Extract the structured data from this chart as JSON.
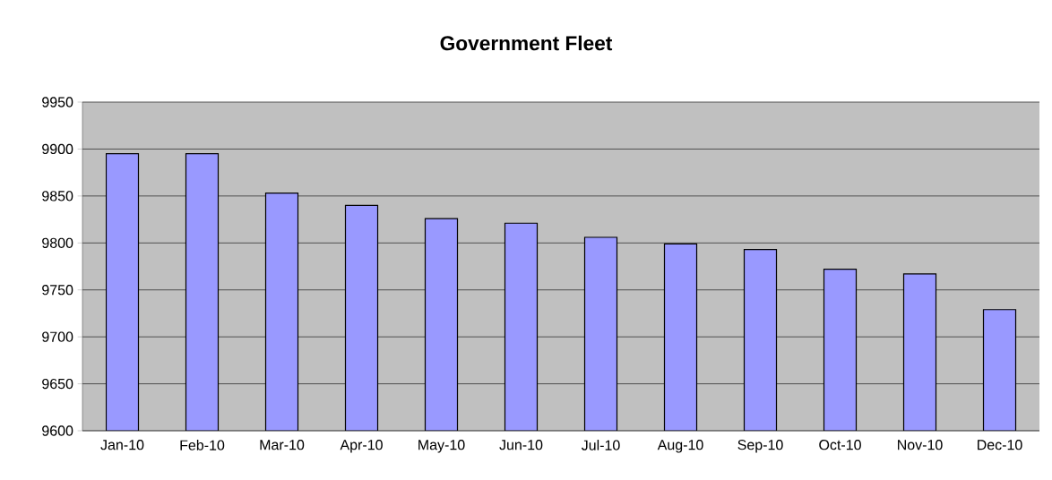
{
  "chart_data": {
    "type": "bar",
    "title": "Government Fleet",
    "categories": [
      "Jan-10",
      "Feb-10",
      "Mar-10",
      "Apr-10",
      "May-10",
      "Jun-10",
      "Jul-10",
      "Aug-10",
      "Sep-10",
      "Oct-10",
      "Nov-10",
      "Dec-10"
    ],
    "values": [
      9895,
      9895,
      9853,
      9840,
      9826,
      9821,
      9806,
      9799,
      9793,
      9772,
      9767,
      9729
    ],
    "color": "#9999ff",
    "ylim": [
      9600,
      9950
    ],
    "yticks": [
      9600,
      9650,
      9700,
      9750,
      9800,
      9850,
      9900,
      9950
    ],
    "grid": "y"
  }
}
